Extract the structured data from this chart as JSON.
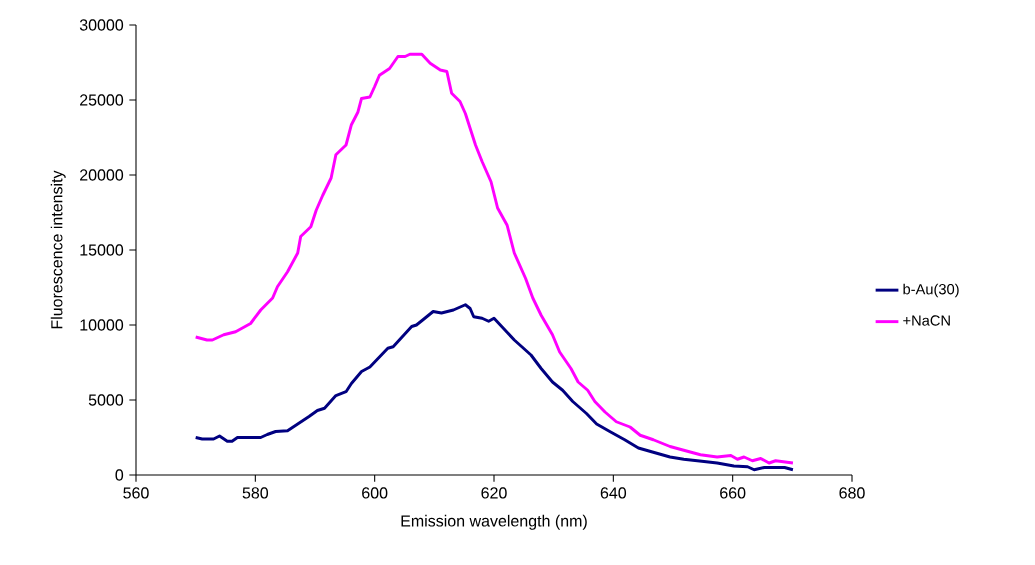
{
  "chart_data": {
    "type": "line",
    "xlabel": "Emission wavelength (nm)",
    "ylabel": "Fluorescence intensity",
    "xlim": [
      560,
      680
    ],
    "xticks": [
      560,
      580,
      600,
      620,
      640,
      660,
      680
    ],
    "ylim": [
      0,
      30000
    ],
    "yticks": [
      0,
      5000,
      10000,
      15000,
      20000,
      25000,
      30000
    ],
    "grid": false,
    "legend": "right",
    "marker": "none",
    "line_style": "solid",
    "series": [
      {
        "name": "b-Au(30)",
        "color": "#000080",
        "x": [
          570,
          571.1,
          573,
          574,
          575.3,
          576.1,
          577,
          580.9,
          582,
          583.4,
          585.4,
          587.1,
          589,
          590.4,
          591.6,
          593.5,
          595.2,
          596.1,
          597.8,
          599.2,
          602.2,
          603.1,
          606.2,
          607,
          608.1,
          609.8,
          611.2,
          613.2,
          615.2,
          616,
          616.6,
          618,
          619.1,
          620,
          623.4,
          626.2,
          627.9,
          629.8,
          631.5,
          633.2,
          635.5,
          637.2,
          639.4,
          641.9,
          644.2,
          646.4,
          649.5,
          651.8,
          655.2,
          657.4,
          660.2,
          662.5,
          663.6,
          665.3,
          668.7,
          670.1
        ],
        "values": [
          2500,
          2400,
          2400,
          2600,
          2250,
          2250,
          2500,
          2500,
          2700,
          2900,
          2950,
          3400,
          3900,
          4300,
          4450,
          5300,
          5550,
          6100,
          6900,
          7200,
          8450,
          8550,
          9900,
          10000,
          10350,
          10900,
          10800,
          11000,
          11350,
          11100,
          10550,
          10450,
          10250,
          10450,
          9000,
          8000,
          7100,
          6200,
          5650,
          4900,
          4100,
          3400,
          2900,
          2350,
          1800,
          1550,
          1200,
          1050,
          900,
          800,
          600,
          550,
          350,
          500,
          500,
          350
        ]
      },
      {
        "name": "+NaCN",
        "color": "#ff00ff",
        "x": [
          570,
          571.9,
          572.8,
          574.7,
          576.7,
          579.2,
          580.9,
          582.9,
          583.7,
          585.4,
          587.1,
          587.6,
          589.3,
          590.2,
          591.3,
          592.7,
          593.5,
          595.2,
          596.1,
          597.2,
          597.8,
          599.2,
          600,
          600.8,
          602.5,
          603.9,
          605.1,
          605.9,
          607.9,
          609.3,
          611,
          612.1,
          612.9,
          614.3,
          615.2,
          616.9,
          618,
          619.5,
          620.6,
          622.2,
          623.4,
          625.3,
          626.5,
          627.9,
          629.8,
          631,
          632.9,
          634.1,
          635.7,
          636.9,
          638.6,
          640.5,
          642.8,
          644.5,
          646.7,
          649.5,
          651.8,
          654.6,
          657.4,
          659.7,
          660.8,
          661.9,
          663.3,
          664.7,
          666.1,
          667.2,
          670.1
        ],
        "values": [
          9200,
          9000,
          9000,
          9350,
          9550,
          10100,
          11000,
          11800,
          12550,
          13550,
          14800,
          15900,
          16550,
          17650,
          18650,
          19800,
          21350,
          22000,
          23350,
          24200,
          25100,
          25200,
          25900,
          26650,
          27100,
          27900,
          27900,
          28050,
          28050,
          27450,
          27000,
          26900,
          25450,
          24900,
          24100,
          22000,
          20900,
          19550,
          17800,
          16650,
          14800,
          13100,
          11800,
          10650,
          9350,
          8200,
          7100,
          6200,
          5650,
          4900,
          4200,
          3550,
          3200,
          2650,
          2350,
          1900,
          1650,
          1350,
          1200,
          1300,
          1050,
          1200,
          950,
          1100,
          800,
          950,
          800
        ]
      }
    ]
  }
}
